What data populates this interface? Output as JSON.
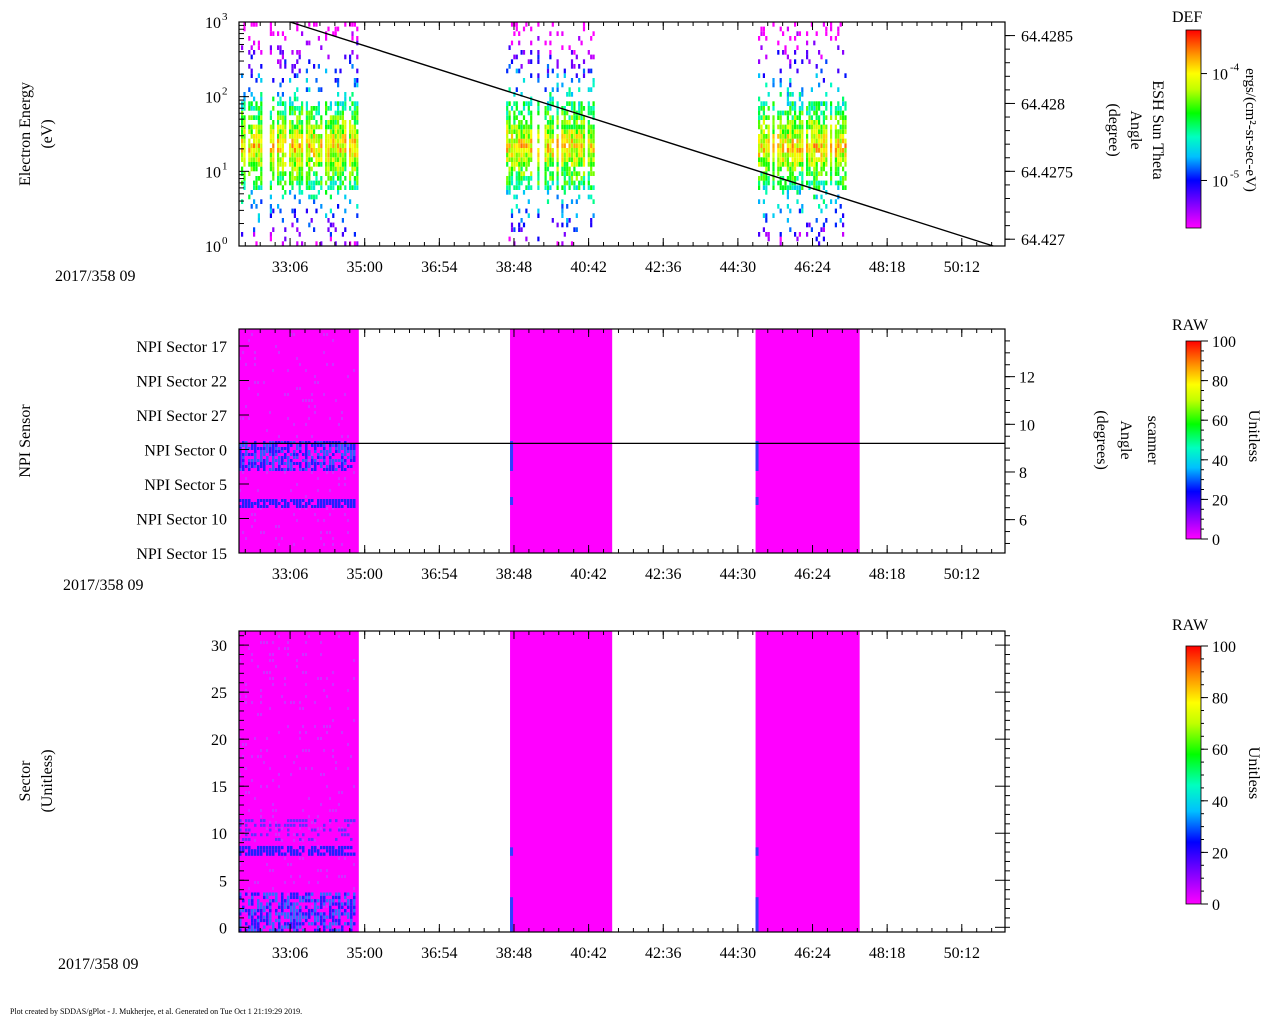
{
  "chart_data": [
    {
      "type": "heatmap",
      "panel": "electron-energy",
      "ylabel": "Electron Energy",
      "yunits": "(eV)",
      "yscale": "log",
      "ylim": [
        1,
        1000
      ],
      "ytick_labels": [
        {
          "base": "10",
          "exp": "0",
          "value": 1
        },
        {
          "base": "10",
          "exp": "1",
          "value": 10
        },
        {
          "base": "10",
          "exp": "2",
          "value": 100
        },
        {
          "base": "10",
          "exp": "3",
          "value": 1000
        }
      ],
      "date_label": "2017/358 09",
      "xlim_minutes": [
        31.8,
        51.3
      ],
      "xtick_labels": [
        "33:06",
        "35:00",
        "36:54",
        "38:48",
        "40:42",
        "42:36",
        "44:30",
        "46:24",
        "48:18",
        "50:12"
      ],
      "xtick_minutes": [
        33.1,
        35.0,
        36.9,
        38.8,
        40.7,
        42.6,
        44.5,
        46.4,
        48.3,
        50.2
      ],
      "data_blocks_minutes": [
        [
          31.85,
          34.8
        ],
        [
          38.6,
          40.85
        ],
        [
          44.95,
          47.25
        ]
      ],
      "core_energy_range_eV": [
        8,
        40
      ],
      "secondary_axis": {
        "label_line1": "ESH Sun Theta",
        "label_line2": "Angle",
        "label_line3": "(degree)",
        "ylim": [
          64.42695,
          64.4286
        ],
        "tick_labels": [
          "64.4285",
          "64.428",
          "64.4275",
          "64.427"
        ],
        "tick_values": [
          64.4285,
          64.428,
          64.4275,
          64.427
        ]
      },
      "overlay_line": {
        "name": "ESH Sun Theta Angle",
        "x_minutes": [
          33.1,
          51.0
        ],
        "y_degree": [
          64.4286,
          64.42695
        ]
      },
      "colorbar": {
        "title": "DEF",
        "label": "ergs/(cm²-sr-sec-eV)",
        "scale": "log",
        "tick_labels": [
          {
            "base": "10",
            "exp": "-4",
            "value_frac": 0.78
          },
          {
            "base": "10",
            "exp": "-5",
            "value_frac": 0.24
          }
        ]
      }
    },
    {
      "type": "heatmap",
      "panel": "npi-sensor",
      "ylabel": "NPI Sensor",
      "ytick_labels": [
        "NPI Sector 17",
        "NPI Sector 22",
        "NPI Sector 27",
        "NPI Sector 0",
        "NPI Sector 5",
        "NPI Sector 10",
        "NPI Sector 15"
      ],
      "date_label": "2017/358 09",
      "xtick_labels": [
        "33:06",
        "35:00",
        "36:54",
        "38:48",
        "40:42",
        "42:36",
        "44:30",
        "46:24",
        "48:18",
        "50:12"
      ],
      "data_blocks_minutes": [
        [
          31.8,
          34.85
        ],
        [
          38.7,
          41.3
        ],
        [
          44.95,
          47.6
        ]
      ],
      "secondary_axis": {
        "label_line1": "scanner",
        "label_line2": "Angle",
        "label_line3": "(degrees)",
        "ylim": [
          4.6,
          14.0
        ],
        "tick_labels": [
          "12",
          "10",
          "8",
          "6"
        ],
        "tick_values": [
          12,
          10,
          8,
          6
        ]
      },
      "overlay_line": {
        "name": "scanner Angle",
        "value_degrees": 9.2
      },
      "colorbar": {
        "title": "RAW",
        "label": "Unitless",
        "range": [
          0,
          100
        ],
        "tick_labels": [
          "100",
          "80",
          "60",
          "40",
          "20",
          "0"
        ],
        "tick_values": [
          100,
          80,
          60,
          40,
          20,
          0
        ]
      }
    },
    {
      "type": "heatmap",
      "panel": "sector",
      "ylabel": "Sector",
      "yunits": "(Unitless)",
      "ylim": [
        -0.5,
        31.5
      ],
      "ytick_labels": [
        "0",
        "5",
        "10",
        "15",
        "20",
        "25",
        "30"
      ],
      "ytick_values": [
        0,
        5,
        10,
        15,
        20,
        25,
        30
      ],
      "date_label": "2017/358 09",
      "xtick_labels": [
        "33:06",
        "35:00",
        "36:54",
        "38:48",
        "40:42",
        "42:36",
        "44:30",
        "46:24",
        "48:18",
        "50:12"
      ],
      "data_blocks_minutes": [
        [
          31.8,
          34.85
        ],
        [
          38.7,
          41.3
        ],
        [
          44.95,
          47.6
        ]
      ],
      "colorbar": {
        "title": "RAW",
        "label": "Unitless",
        "range": [
          0,
          100
        ],
        "tick_labels": [
          "100",
          "80",
          "60",
          "40",
          "20",
          "0"
        ],
        "tick_values": [
          100,
          80,
          60,
          40,
          20,
          0
        ]
      }
    }
  ],
  "footer": "Plot created by SDDAS/gPlot - J. Mukherjee, et al.  Generated on Tue Oct 1 21:19:29 2019."
}
